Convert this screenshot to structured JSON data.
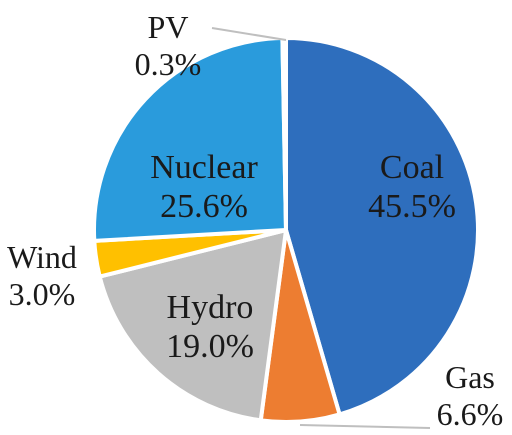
{
  "chart_data": {
    "type": "pie",
    "slices": [
      {
        "name": "Coal",
        "value": 45.5,
        "label": "45.5%",
        "color": "#2e6ebd"
      },
      {
        "name": "Gas",
        "value": 6.6,
        "label": "6.6%",
        "color": "#ed7d31"
      },
      {
        "name": "Hydro",
        "value": 19.0,
        "label": "19.0%",
        "color": "#bfbfbf"
      },
      {
        "name": "Wind",
        "value": 3.0,
        "label": "3.0%",
        "color": "#ffc000"
      },
      {
        "name": "Nuclear",
        "value": 25.6,
        "label": "25.6%",
        "color": "#2a9bdc"
      },
      {
        "name": "PV",
        "value": 0.3,
        "label": "0.3%",
        "color": "#b9b9b9"
      }
    ],
    "start": "12 o'clock",
    "direction": "clockwise",
    "legend": "none",
    "slice_border_color": "#ffffff",
    "leader_line_color": "#bfbfbf"
  }
}
